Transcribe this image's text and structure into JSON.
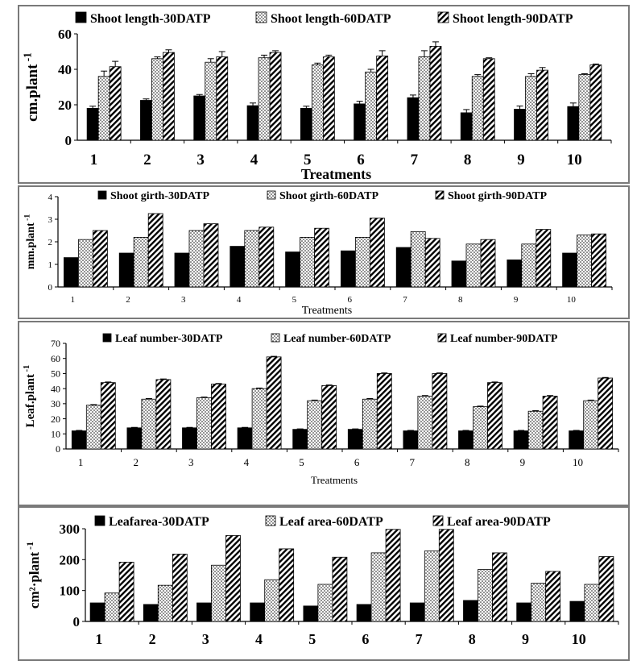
{
  "chart_data": [
    {
      "type": "bar",
      "categories": [
        "1",
        "2",
        "3",
        "4",
        "5",
        "6",
        "7",
        "8",
        "9",
        "10"
      ],
      "series": [
        {
          "name": "Shoot length-30DATP",
          "values": [
            18,
            22.5,
            25,
            19.5,
            18,
            20.5,
            24,
            15.5,
            17.5,
            19
          ],
          "errors": [
            1.2,
            0.8,
            0.8,
            1.5,
            1.2,
            1.5,
            1.5,
            1.8,
            1.8,
            2.0
          ]
        },
        {
          "name": "Shoot length-60DATP",
          "values": [
            36,
            46,
            44,
            46.5,
            42.5,
            38.5,
            47,
            36,
            36,
            37
          ],
          "errors": [
            3,
            1,
            2,
            1.5,
            1,
            1.5,
            3.5,
            1,
            1.5,
            0.5
          ]
        },
        {
          "name": "Shoot length-90DATP",
          "values": [
            41.5,
            49.5,
            47,
            49.5,
            47,
            47.5,
            53,
            46,
            39.5,
            42.5
          ],
          "errors": [
            3,
            1.5,
            3,
            1,
            1,
            3,
            2.5,
            0.5,
            1.5,
            0.5
          ]
        }
      ],
      "yticks": [
        "0",
        "20",
        "40",
        "60"
      ],
      "ylim": [
        0,
        60
      ],
      "ylabel": "cm.plant",
      "ylabel_exp": "-1",
      "xlabel": "Treatments",
      "legend_position": "top"
    },
    {
      "type": "bar",
      "categories": [
        "1",
        "2",
        "3",
        "4",
        "5",
        "6",
        "7",
        "8",
        "9",
        "10"
      ],
      "series": [
        {
          "name": "Shoot girth-30DATP",
          "values": [
            1.3,
            1.5,
            1.5,
            1.8,
            1.55,
            1.6,
            1.75,
            1.15,
            1.2,
            1.5
          ]
        },
        {
          "name": "Shoot girth-60DATP",
          "values": [
            2.1,
            2.2,
            2.5,
            2.5,
            2.2,
            2.2,
            2.45,
            1.9,
            1.9,
            2.3
          ]
        },
        {
          "name": "Shoot girth-90DATP",
          "values": [
            2.5,
            3.25,
            2.8,
            2.65,
            2.6,
            3.05,
            2.15,
            2.1,
            2.55,
            2.35
          ]
        }
      ],
      "yticks": [
        "0",
        "1",
        "2",
        "3",
        "4"
      ],
      "ylim": [
        0,
        4
      ],
      "ylabel": "mm.plant",
      "ylabel_exp": "-1",
      "xlabel": "Treatments",
      "legend_position": "top"
    },
    {
      "type": "bar",
      "categories": [
        "1",
        "2",
        "3",
        "4",
        "5",
        "6",
        "7",
        "8",
        "9",
        "10"
      ],
      "series": [
        {
          "name": "Leaf number-30DATP",
          "values": [
            12,
            14,
            14,
            14,
            13,
            13,
            12,
            12,
            12,
            12
          ],
          "errors": [
            0.3,
            0.3,
            0.3,
            0.3,
            0.3,
            0.3,
            0.3,
            0.3,
            0.3,
            0.3
          ]
        },
        {
          "name": "Leaf number-60DATP",
          "values": [
            29,
            33,
            34,
            40,
            32,
            33,
            35,
            28,
            25,
            32
          ],
          "errors": [
            0.4,
            0.4,
            0.4,
            0.4,
            0.4,
            0.4,
            0.4,
            0.4,
            0.4,
            0.4
          ]
        },
        {
          "name": "Leaf number-90DATP",
          "values": [
            44,
            46,
            43,
            61,
            42,
            50,
            50,
            44,
            35,
            47
          ],
          "errors": [
            0.4,
            0.4,
            0.4,
            0.4,
            0.4,
            0.4,
            0.4,
            0.4,
            0.4,
            0.4
          ]
        }
      ],
      "yticks": [
        "0",
        "10",
        "20",
        "30",
        "40",
        "50",
        "60",
        "70"
      ],
      "ylim": [
        0,
        70
      ],
      "ylabel": "Leaf.plant",
      "ylabel_exp": "-1",
      "xlabel": "Treatments",
      "legend_position": "top"
    },
    {
      "type": "bar",
      "categories": [
        "1",
        "2",
        "3",
        "4",
        "5",
        "6",
        "7",
        "8",
        "9",
        "10"
      ],
      "series": [
        {
          "name": "Leafarea-30DATP",
          "values": [
            60,
            55,
            60,
            60,
            50,
            55,
            60,
            68,
            60,
            65
          ]
        },
        {
          "name": "Leaf area-60DATP",
          "values": [
            92,
            117,
            182,
            135,
            120,
            222,
            228,
            168,
            124,
            120
          ]
        },
        {
          "name": "Leaf area-90DATP",
          "values": [
            192,
            218,
            278,
            235,
            208,
            298,
            298,
            222,
            162,
            210
          ]
        }
      ],
      "yticks": [
        "0",
        "100",
        "200",
        "300"
      ],
      "ylim": [
        0,
        300
      ],
      "ylabel": "cm²·plant",
      "ylabel_exp": "-1",
      "xlabel": "",
      "legend_position": "top"
    }
  ]
}
